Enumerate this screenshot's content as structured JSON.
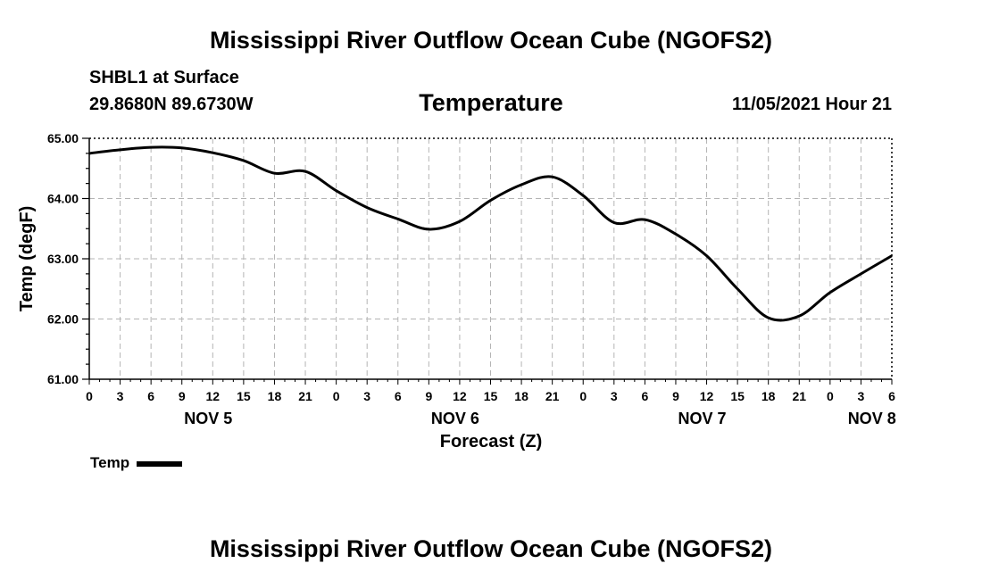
{
  "header": {
    "title": "Mississippi River Outflow Ocean Cube (NGOFS2)",
    "station": "SHBL1 at Surface",
    "coordinates": "29.8680N  89.6730W",
    "variable": "Temperature",
    "datetime": "11/05/2021 Hour 21"
  },
  "footer": {
    "title": "Mississippi River Outflow Ocean Cube (NGOFS2)"
  },
  "legend": {
    "label": "Temp",
    "color": "#000000"
  },
  "chart_data": {
    "type": "line",
    "title": "Temperature",
    "xlabel": "Forecast (Z)",
    "ylabel": "Temp (degF)",
    "xlim": [
      0,
      78
    ],
    "ylim": [
      61.0,
      65.0
    ],
    "grid": true,
    "y_ticks": [
      61.0,
      62.0,
      63.0,
      64.0,
      65.0
    ],
    "y_tick_labels": [
      "61.00",
      "62.00",
      "63.00",
      "64.00",
      "65.00"
    ],
    "x_ticks": [
      0,
      3,
      6,
      9,
      12,
      15,
      18,
      21,
      24,
      27,
      30,
      33,
      36,
      39,
      42,
      45,
      48,
      51,
      54,
      57,
      60,
      63,
      66,
      69,
      72,
      75,
      78
    ],
    "x_tick_labels": [
      "0",
      "3",
      "6",
      "9",
      "12",
      "15",
      "18",
      "21",
      "0",
      "3",
      "6",
      "9",
      "12",
      "15",
      "18",
      "21",
      "0",
      "3",
      "6",
      "9",
      "12",
      "15",
      "18",
      "21",
      "0",
      "3",
      "6"
    ],
    "day_labels": [
      {
        "label": "NOV 5",
        "x": 12
      },
      {
        "label": "NOV 6",
        "x": 36
      },
      {
        "label": "NOV 7",
        "x": 60
      },
      {
        "label": "NOV 8",
        "x": 76.5
      }
    ],
    "series": [
      {
        "name": "Temp",
        "color": "#000000",
        "x": [
          0,
          3,
          6,
          9,
          12,
          15,
          18,
          21,
          24,
          27,
          30,
          33,
          36,
          39,
          42,
          45,
          48,
          51,
          54,
          57,
          60,
          63,
          66,
          69,
          72,
          75,
          78
        ],
        "values": [
          64.75,
          64.81,
          64.85,
          64.84,
          64.76,
          64.63,
          64.42,
          64.45,
          64.13,
          63.85,
          63.66,
          63.49,
          63.62,
          63.97,
          64.23,
          64.36,
          64.05,
          63.6,
          63.65,
          63.41,
          63.05,
          62.5,
          62.02,
          62.05,
          62.44,
          62.75,
          63.05
        ]
      }
    ]
  }
}
